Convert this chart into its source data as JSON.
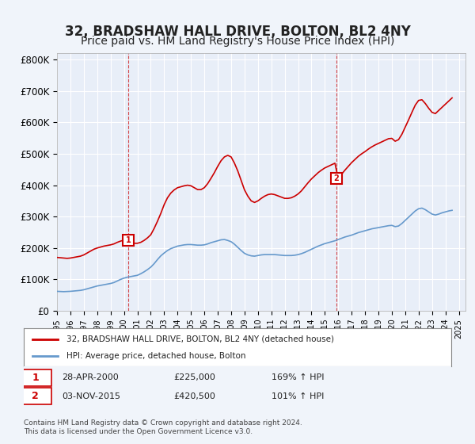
{
  "title": "32, BRADSHAW HALL DRIVE, BOLTON, BL2 4NY",
  "subtitle": "Price paid vs. HM Land Registry's House Price Index (HPI)",
  "title_fontsize": 12,
  "subtitle_fontsize": 10,
  "background_color": "#f0f4fa",
  "plot_bg_color": "#e8eef8",
  "grid_color": "#ffffff",
  "ylabel_ticks": [
    "£0",
    "£100K",
    "£200K",
    "£300K",
    "£400K",
    "£500K",
    "£600K",
    "£700K",
    "£800K"
  ],
  "ytick_values": [
    0,
    100000,
    200000,
    300000,
    400000,
    500000,
    600000,
    700000,
    800000
  ],
  "ylim": [
    0,
    820000
  ],
  "xlim_start": 1995.0,
  "xlim_end": 2025.5,
  "marker1_x": 2000.32,
  "marker1_y": 225000,
  "marker1_label": "1",
  "marker1_date": "28-APR-2000",
  "marker1_price": "£225,000",
  "marker1_hpi": "169% ↑ HPI",
  "marker2_x": 2015.84,
  "marker2_y": 420500,
  "marker2_label": "2",
  "marker2_date": "03-NOV-2015",
  "marker2_price": "£420,500",
  "marker2_hpi": "101% ↑ HPI",
  "red_line_color": "#cc0000",
  "blue_line_color": "#6699cc",
  "legend_line1": "32, BRADSHAW HALL DRIVE, BOLTON, BL2 4NY (detached house)",
  "legend_line2": "HPI: Average price, detached house, Bolton",
  "footnote": "Contains HM Land Registry data © Crown copyright and database right 2024.\nThis data is licensed under the Open Government Licence v3.0.",
  "hpi_data_x": [
    1995.0,
    1995.25,
    1995.5,
    1995.75,
    1996.0,
    1996.25,
    1996.5,
    1996.75,
    1997.0,
    1997.25,
    1997.5,
    1997.75,
    1998.0,
    1998.25,
    1998.5,
    1998.75,
    1999.0,
    1999.25,
    1999.5,
    1999.75,
    2000.0,
    2000.25,
    2000.5,
    2000.75,
    2001.0,
    2001.25,
    2001.5,
    2001.75,
    2002.0,
    2002.25,
    2002.5,
    2002.75,
    2003.0,
    2003.25,
    2003.5,
    2003.75,
    2004.0,
    2004.25,
    2004.5,
    2004.75,
    2005.0,
    2005.25,
    2005.5,
    2005.75,
    2006.0,
    2006.25,
    2006.5,
    2006.75,
    2007.0,
    2007.25,
    2007.5,
    2007.75,
    2008.0,
    2008.25,
    2008.5,
    2008.75,
    2009.0,
    2009.25,
    2009.5,
    2009.75,
    2010.0,
    2010.25,
    2010.5,
    2010.75,
    2011.0,
    2011.25,
    2011.5,
    2011.75,
    2012.0,
    2012.25,
    2012.5,
    2012.75,
    2013.0,
    2013.25,
    2013.5,
    2013.75,
    2014.0,
    2014.25,
    2014.5,
    2014.75,
    2015.0,
    2015.25,
    2015.5,
    2015.75,
    2016.0,
    2016.25,
    2016.5,
    2016.75,
    2017.0,
    2017.25,
    2017.5,
    2017.75,
    2018.0,
    2018.25,
    2018.5,
    2018.75,
    2019.0,
    2019.25,
    2019.5,
    2019.75,
    2020.0,
    2020.25,
    2020.5,
    2020.75,
    2021.0,
    2021.25,
    2021.5,
    2021.75,
    2022.0,
    2022.25,
    2022.5,
    2022.75,
    2023.0,
    2023.25,
    2023.5,
    2023.75,
    2024.0,
    2024.25,
    2024.5
  ],
  "hpi_data_y": [
    62000,
    61500,
    61000,
    61500,
    62000,
    63000,
    64000,
    65000,
    67000,
    70000,
    73000,
    76000,
    79000,
    81000,
    83000,
    85000,
    87000,
    90000,
    95000,
    100000,
    104000,
    107000,
    109000,
    111000,
    113000,
    118000,
    124000,
    131000,
    139000,
    150000,
    163000,
    175000,
    184000,
    192000,
    198000,
    202000,
    206000,
    208000,
    210000,
    211000,
    211000,
    210000,
    209000,
    209000,
    210000,
    213000,
    217000,
    220000,
    223000,
    226000,
    227000,
    224000,
    220000,
    212000,
    202000,
    192000,
    183000,
    178000,
    175000,
    174000,
    176000,
    178000,
    179000,
    179000,
    179000,
    179000,
    178000,
    177000,
    176000,
    176000,
    176000,
    177000,
    179000,
    182000,
    186000,
    191000,
    196000,
    201000,
    206000,
    210000,
    214000,
    217000,
    220000,
    223000,
    227000,
    231000,
    235000,
    238000,
    241000,
    245000,
    249000,
    252000,
    255000,
    258000,
    261000,
    263000,
    265000,
    267000,
    269000,
    271000,
    272000,
    268000,
    270000,
    278000,
    288000,
    298000,
    308000,
    318000,
    325000,
    327000,
    322000,
    315000,
    308000,
    305000,
    308000,
    312000,
    315000,
    318000,
    320000
  ],
  "red_data_x": [
    1995.0,
    1995.25,
    1995.5,
    1995.75,
    1996.0,
    1996.25,
    1996.5,
    1996.75,
    1997.0,
    1997.25,
    1997.5,
    1997.75,
    1998.0,
    1998.25,
    1998.5,
    1998.75,
    1999.0,
    1999.25,
    1999.5,
    1999.75,
    2000.0,
    2000.25,
    2000.5,
    2000.75,
    2001.0,
    2001.25,
    2001.5,
    2001.75,
    2002.0,
    2002.25,
    2002.5,
    2002.75,
    2003.0,
    2003.25,
    2003.5,
    2003.75,
    2004.0,
    2004.25,
    2004.5,
    2004.75,
    2005.0,
    2005.25,
    2005.5,
    2005.75,
    2006.0,
    2006.25,
    2006.5,
    2006.75,
    2007.0,
    2007.25,
    2007.5,
    2007.75,
    2008.0,
    2008.25,
    2008.5,
    2008.75,
    2009.0,
    2009.25,
    2009.5,
    2009.75,
    2010.0,
    2010.25,
    2010.5,
    2010.75,
    2011.0,
    2011.25,
    2011.5,
    2011.75,
    2012.0,
    2012.25,
    2012.5,
    2012.75,
    2013.0,
    2013.25,
    2013.5,
    2013.75,
    2014.0,
    2014.25,
    2014.5,
    2014.75,
    2015.0,
    2015.25,
    2015.5,
    2015.75,
    2016.0,
    2016.25,
    2016.5,
    2016.75,
    2017.0,
    2017.25,
    2017.5,
    2017.75,
    2018.0,
    2018.25,
    2018.5,
    2018.75,
    2019.0,
    2019.25,
    2019.5,
    2019.75,
    2020.0,
    2020.25,
    2020.5,
    2020.75,
    2021.0,
    2021.25,
    2021.5,
    2021.75,
    2022.0,
    2022.25,
    2022.5,
    2022.75,
    2023.0,
    2023.25,
    2023.5,
    2023.75,
    2024.0,
    2024.25,
    2024.5
  ],
  "red_data_y": [
    170000,
    169000,
    168000,
    167000,
    168000,
    170000,
    172000,
    174000,
    178000,
    184000,
    190000,
    196000,
    200000,
    203000,
    206000,
    208000,
    210000,
    213000,
    218000,
    222000,
    225000,
    222000,
    218000,
    215000,
    215000,
    218000,
    224000,
    232000,
    242000,
    262000,
    285000,
    310000,
    338000,
    360000,
    375000,
    385000,
    392000,
    395000,
    398000,
    400000,
    398000,
    392000,
    386000,
    386000,
    392000,
    405000,
    422000,
    440000,
    460000,
    478000,
    490000,
    495000,
    490000,
    470000,
    445000,
    415000,
    385000,
    365000,
    350000,
    345000,
    350000,
    358000,
    365000,
    370000,
    372000,
    370000,
    366000,
    362000,
    358000,
    358000,
    360000,
    365000,
    372000,
    382000,
    395000,
    408000,
    420000,
    430000,
    440000,
    448000,
    455000,
    460000,
    465000,
    470000,
    420500,
    435000,
    448000,
    460000,
    472000,
    482000,
    492000,
    500000,
    507000,
    515000,
    522000,
    528000,
    533000,
    538000,
    543000,
    548000,
    549000,
    540000,
    545000,
    562000,
    585000,
    608000,
    632000,
    655000,
    670000,
    672000,
    660000,
    645000,
    632000,
    628000,
    638000,
    648000,
    658000,
    668000,
    678000
  ]
}
